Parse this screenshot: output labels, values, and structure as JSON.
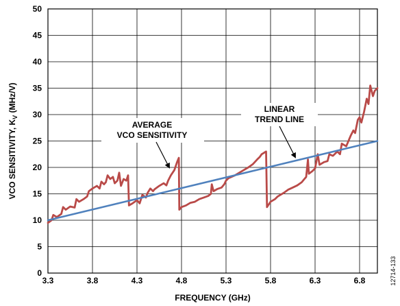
{
  "chart_data": {
    "type": "line",
    "title": "",
    "xlabel": "FREQUENCY (GHz)",
    "ylabel_main": "VCO SENSITIVITY, K",
    "ylabel_sub": "V",
    "ylabel_unit": " (MHz/V)",
    "xlim": [
      3.3,
      7.0
    ],
    "ylim": [
      0,
      50
    ],
    "x_ticks": [
      3.3,
      3.8,
      4.3,
      4.8,
      5.3,
      5.8,
      6.3,
      6.8
    ],
    "x_tick_labels": [
      "3.3",
      "3.8",
      "4.3",
      "4.8",
      "5.3",
      "5.8",
      "6.3",
      "6.8"
    ],
    "y_ticks": [
      0,
      5,
      10,
      15,
      20,
      25,
      30,
      35,
      40,
      45,
      50
    ],
    "y_tick_labels": [
      "0",
      "5",
      "10",
      "15",
      "20",
      "25",
      "30",
      "35",
      "40",
      "45",
      "50"
    ],
    "grid": true,
    "annotations": [
      {
        "lines": [
          "AVERAGE",
          "VCO SENSITIVITY"
        ]
      },
      {
        "lines": [
          "LINEAR",
          "TREND LINE"
        ]
      }
    ],
    "side_label": "12714-133",
    "series": [
      {
        "color": "#b94a48",
        "points": [
          [
            3.3,
            9.5
          ],
          [
            3.34,
            10.0
          ],
          [
            3.36,
            11.0
          ],
          [
            3.4,
            10.6
          ],
          [
            3.45,
            11.2
          ],
          [
            3.47,
            12.5
          ],
          [
            3.5,
            12.0
          ],
          [
            3.55,
            12.6
          ],
          [
            3.6,
            12.4
          ],
          [
            3.62,
            14.0
          ],
          [
            3.65,
            13.5
          ],
          [
            3.7,
            14.0
          ],
          [
            3.74,
            14.5
          ],
          [
            3.76,
            15.5
          ],
          [
            3.8,
            16.0
          ],
          [
            3.85,
            16.5
          ],
          [
            3.88,
            16.0
          ],
          [
            3.9,
            17.3
          ],
          [
            3.93,
            16.8
          ],
          [
            3.95,
            17.2
          ],
          [
            3.97,
            18.5
          ],
          [
            4.0,
            17.8
          ],
          [
            4.03,
            18.2
          ],
          [
            4.05,
            17.0
          ],
          [
            4.08,
            17.5
          ],
          [
            4.1,
            19.0
          ],
          [
            4.12,
            16.5
          ],
          [
            4.15,
            17.8
          ],
          [
            4.18,
            17.5
          ],
          [
            4.2,
            18.5
          ],
          [
            4.21,
            12.8
          ],
          [
            4.25,
            13.2
          ],
          [
            4.3,
            13.8
          ],
          [
            4.33,
            13.2
          ],
          [
            4.36,
            14.8
          ],
          [
            4.4,
            14.3
          ],
          [
            4.42,
            15.2
          ],
          [
            4.45,
            16.0
          ],
          [
            4.48,
            15.5
          ],
          [
            4.5,
            15.9
          ],
          [
            4.55,
            16.5
          ],
          [
            4.6,
            17.0
          ],
          [
            4.63,
            16.6
          ],
          [
            4.65,
            17.5
          ],
          [
            4.68,
            18.5
          ],
          [
            4.72,
            19.5
          ],
          [
            4.75,
            21.0
          ],
          [
            4.77,
            21.8
          ],
          [
            4.775,
            12.0
          ],
          [
            4.8,
            12.5
          ],
          [
            4.85,
            12.8
          ],
          [
            4.9,
            13.3
          ],
          [
            4.95,
            13.5
          ],
          [
            5.0,
            14.0
          ],
          [
            5.05,
            14.3
          ],
          [
            5.1,
            14.6
          ],
          [
            5.13,
            15.0
          ],
          [
            5.14,
            16.8
          ],
          [
            5.16,
            15.5
          ],
          [
            5.2,
            15.9
          ],
          [
            5.25,
            16.2
          ],
          [
            5.28,
            16.8
          ],
          [
            5.3,
            17.5
          ],
          [
            5.33,
            18.0
          ],
          [
            5.36,
            18.2
          ],
          [
            5.4,
            18.5
          ],
          [
            5.45,
            19.0
          ],
          [
            5.5,
            19.5
          ],
          [
            5.55,
            20.0
          ],
          [
            5.6,
            20.6
          ],
          [
            5.65,
            21.5
          ],
          [
            5.68,
            22.0
          ],
          [
            5.7,
            22.5
          ],
          [
            5.73,
            22.8
          ],
          [
            5.75,
            23.0
          ],
          [
            5.76,
            12.5
          ],
          [
            5.78,
            13.0
          ],
          [
            5.8,
            13.5
          ],
          [
            5.85,
            14.0
          ],
          [
            5.88,
            14.5
          ],
          [
            5.9,
            14.7
          ],
          [
            5.95,
            15.2
          ],
          [
            6.0,
            15.8
          ],
          [
            6.05,
            16.2
          ],
          [
            6.1,
            16.6
          ],
          [
            6.15,
            17.2
          ],
          [
            6.18,
            17.8
          ],
          [
            6.2,
            18.2
          ],
          [
            6.22,
            21.5
          ],
          [
            6.23,
            18.8
          ],
          [
            6.27,
            19.3
          ],
          [
            6.3,
            19.8
          ],
          [
            6.33,
            22.5
          ],
          [
            6.35,
            20.5
          ],
          [
            6.4,
            21.0
          ],
          [
            6.44,
            21.2
          ],
          [
            6.46,
            22.5
          ],
          [
            6.5,
            22.2
          ],
          [
            6.55,
            23.0
          ],
          [
            6.58,
            22.5
          ],
          [
            6.6,
            24.5
          ],
          [
            6.65,
            24.0
          ],
          [
            6.7,
            26.0
          ],
          [
            6.73,
            27.0
          ],
          [
            6.75,
            26.5
          ],
          [
            6.78,
            29.0
          ],
          [
            6.8,
            29.5
          ],
          [
            6.82,
            28.5
          ],
          [
            6.85,
            30.5
          ],
          [
            6.88,
            33.0
          ],
          [
            6.9,
            32.0
          ],
          [
            6.92,
            35.5
          ],
          [
            6.95,
            33.5
          ],
          [
            6.97,
            34.5
          ],
          [
            7.0,
            35.0
          ]
        ]
      },
      {
        "color": "#4f81bd",
        "points": [
          [
            3.3,
            10.0
          ],
          [
            7.0,
            25.0
          ]
        ]
      }
    ]
  }
}
